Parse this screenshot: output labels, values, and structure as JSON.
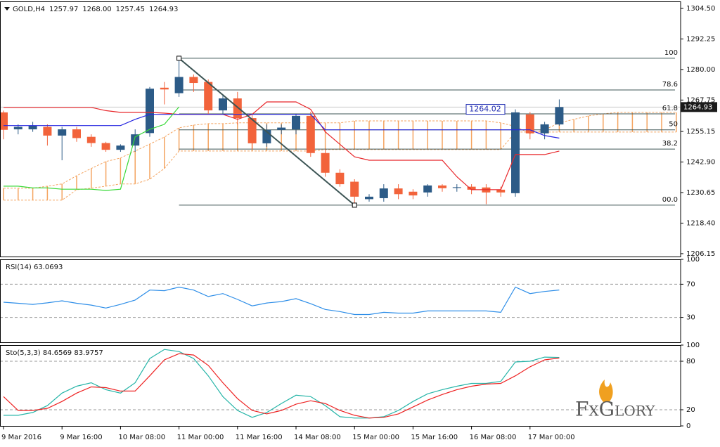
{
  "chart_data": [
    {
      "type": "candlestick",
      "title": "GOLD,H4",
      "ohlc_labels": [
        "1257.97",
        "1268.00",
        "1257.45",
        "1264.93"
      ],
      "categories": [
        "9 Mar 2016",
        null,
        null,
        null,
        "9 Mar 16:00",
        null,
        null,
        null,
        "10 Mar 08:00",
        null,
        null,
        null,
        "11 Mar 00:00",
        null,
        null,
        null,
        "11 Mar 16:00",
        null,
        null,
        null,
        "14 Mar 08:00",
        null,
        null,
        null,
        "15 Mar 00:00",
        null,
        null,
        null,
        "15 Mar 16:00",
        null,
        null,
        null,
        "16 Mar 08:00",
        null,
        null,
        null,
        "17 Mar 00:00",
        null,
        null,
        null,
        null,
        null,
        null,
        null,
        null,
        null,
        null
      ],
      "open": [
        1262.8,
        1256,
        1256,
        1257,
        1253.5,
        1256,
        1253,
        1250.5,
        1247.8,
        1249.5,
        1254.5,
        1272.7,
        1270.5,
        1277,
        1275,
        1263.6,
        1268.4,
        1260.5,
        1250.4,
        1255.8,
        1256,
        1261.4,
        1246.5,
        1238.6,
        1235,
        1228,
        1228.4,
        1232.3,
        1231,
        1230.7,
        1233.5,
        1232.5,
        1233,
        1232.7,
        1231.8,
        1230.4,
        1262,
        1254.4,
        1257.97,
        null,
        null,
        null,
        null,
        null,
        null,
        null,
        null
      ],
      "high": [
        1263.5,
        1258,
        1259,
        1258,
        1257,
        1257,
        1254,
        1251,
        1250,
        1256,
        1273,
        1275,
        1283.6,
        1278,
        1276,
        1270,
        1271,
        1262,
        1258,
        1258,
        1262,
        1263,
        1248,
        1240,
        1236,
        1230,
        1234,
        1234,
        1232,
        1234,
        1234,
        1234,
        1234,
        1234,
        1233,
        1264,
        1263,
        1259,
        1268,
        null,
        null,
        null,
        null,
        null,
        null,
        null,
        null
      ],
      "low": [
        1252,
        1254,
        1255,
        1249.5,
        1243.6,
        1251,
        1249,
        1247,
        1247,
        1247,
        1253,
        1266,
        1269,
        1271,
        1262,
        1262,
        1258,
        1248,
        1249,
        1254,
        1254,
        1245,
        1237,
        1233,
        1226,
        1227,
        1227,
        1228,
        1228,
        1229,
        1231,
        1231,
        1230,
        1226,
        1229,
        1229,
        1252,
        1252,
        1257.45,
        null,
        null,
        null,
        null,
        null,
        null,
        null,
        null
      ],
      "close": [
        1255.8,
        1257,
        1257.5,
        1253.5,
        1256,
        1252.5,
        1250.5,
        1247.8,
        1249.5,
        1254,
        1272.3,
        1272,
        1277,
        1274.6,
        1263.6,
        1268.4,
        1260.5,
        1250.4,
        1255.8,
        1256.7,
        1261.4,
        1246.5,
        1238.6,
        1234,
        1229,
        1229,
        1232.3,
        1230,
        1229.5,
        1233.5,
        1232.4,
        1232.8,
        1231.8,
        1230.7,
        1230.7,
        1262.8,
        1254.4,
        1258,
        1264.93,
        null,
        null,
        null,
        null,
        null,
        null,
        null,
        null
      ],
      "up_color": "#2c5b87",
      "down_color": "#f2633b",
      "series": [
        {
          "color": "#e8262a",
          "values": [
            1264.8,
            1264.8,
            1264.8,
            1264.8,
            1264.8,
            1264.8,
            1264.8,
            1263.5,
            1262.8,
            1262.8,
            1262.8,
            1262.5,
            1262,
            1262,
            1262,
            1262,
            1260,
            1262,
            1267,
            1267,
            1267,
            1264,
            1255,
            1250,
            1245,
            1243.6,
            1243.6,
            1243.6,
            1243.6,
            1243.6,
            1243.6,
            1237,
            1231.8,
            1231.8,
            1231.8,
            1245.9,
            1245.9,
            1245.9,
            1247.3,
            null,
            null,
            null,
            null,
            null,
            null,
            null,
            null
          ]
        },
        {
          "color": "#2626e0",
          "values": [
            1257.5,
            1257.5,
            1257.5,
            1257.5,
            1257.5,
            1257.5,
            1257.5,
            1257.5,
            1257.5,
            1260,
            1262,
            1262,
            1262,
            1262,
            1262,
            1262,
            1262,
            1262,
            1262,
            1262,
            1262,
            1262,
            1255.8,
            1255.8,
            1255.8,
            1255.8,
            1255.8,
            1255.8,
            1255.8,
            1255.8,
            1255.8,
            1255.8,
            1255.8,
            1255.8,
            1255.8,
            1255.8,
            1255.8,
            1253.5,
            1252.5,
            null,
            null,
            null,
            null,
            null,
            null,
            null,
            null
          ]
        },
        {
          "color": "#36d936",
          "values": [
            1233.2,
            1233.2,
            1232.5,
            1232.5,
            1232,
            1232,
            1232,
            1231.5,
            1232,
            1253,
            1256,
            1258,
            1265,
            null,
            null,
            null,
            null,
            null,
            null,
            null,
            null,
            null,
            null,
            null,
            null,
            null,
            null,
            null,
            null,
            null,
            null,
            null,
            null,
            null,
            null,
            null,
            null,
            null,
            null,
            null,
            null,
            null,
            null,
            null,
            null,
            null,
            null
          ]
        }
      ],
      "cloud": {
        "color": "#f4a460",
        "a": [
          1232.4,
          1232.4,
          1232.4,
          1233.2,
          1234.1,
          1237.4,
          1240.3,
          1243.1,
          1244.5,
          1247.3,
          1250.1,
          1252.9,
          1256.6,
          1257.7,
          1258.3,
          1258.3,
          1258.6,
          1258.6,
          1258.6,
          1258.6,
          1258.6,
          1258.6,
          1258.6,
          1258.6,
          1259.4,
          1259.4,
          1259.4,
          1259.4,
          1259.4,
          1259.4,
          1259.4,
          1259.4,
          1259.4,
          1259.4,
          1258.6,
          1257.2,
          1254.3,
          1255.8,
          1258.6,
          1260,
          1261.4,
          1262.2,
          1262.8,
          1262.8,
          1262.8,
          1262.8,
          1262.8
        ],
        "b": [
          1227.6,
          1227.6,
          1227.6,
          1227.6,
          1227.6,
          1231.8,
          1232.4,
          1233.2,
          1234.1,
          1234.1,
          1236,
          1240.3,
          1247.3,
          1247.3,
          1247.3,
          1247.3,
          1247.3,
          1247.3,
          1247.3,
          1247.3,
          1247.3,
          1247.3,
          1247.9,
          1247.9,
          1247.9,
          1247.9,
          1247.9,
          1247.9,
          1247.9,
          1247.9,
          1247.9,
          1247.9,
          1247.9,
          1247.9,
          1247.9,
          1254.9,
          1254.9,
          1254.9,
          1254.9,
          1254.9,
          1254.9,
          1254.9,
          1254.9,
          1254.9,
          1254.9,
          1254.9,
          1254.9
        ]
      },
      "trendline": {
        "color": "#3d5555",
        "x": [
          12,
          24
        ],
        "y": [
          1284.5,
          1225.6
        ]
      },
      "fibonacci": {
        "color": "#3d5555",
        "levels": [
          {
            "label": "100",
            "value": 1284.5
          },
          {
            "label": "78.6",
            "value": 1271.8
          },
          {
            "label": "61.8",
            "value": 1262.2
          },
          {
            "label": "50",
            "value": 1255.8
          },
          {
            "label": "38.2",
            "value": 1248.1
          },
          {
            "label": "00.0",
            "value": 1225.6
          }
        ]
      },
      "marker": {
        "value": 1264.02,
        "label": "1264.02",
        "color": "#1f2bb0"
      },
      "last_price": {
        "value": 1264.93,
        "label": "1264.93"
      },
      "ylim": [
        1205,
        1307.3
      ],
      "yticks": [
        {
          "value": 1304.5,
          "label": "1304.50"
        },
        1292.25,
        {
          "value": 1280,
          "label": "1280.00"
        },
        1267.75,
        1255.15,
        {
          "value": 1242.9,
          "label": "1242.90"
        },
        1230.65,
        {
          "value": 1218.4,
          "label": "1218.40"
        },
        1206.15
      ]
    },
    {
      "type": "line",
      "title": "RSI(14) 63.0693",
      "series": [
        {
          "color": "#2e8ee8",
          "values": [
            48.3,
            47,
            45.7,
            47.5,
            50,
            47,
            44.8,
            41.3,
            45.7,
            50.9,
            63,
            62.2,
            66.5,
            63,
            55.2,
            58.7,
            51.7,
            43.9,
            47.4,
            49.1,
            52.6,
            46.5,
            39.6,
            37,
            33.5,
            33.5,
            36.1,
            35.2,
            35.2,
            37.8,
            37.8,
            37.8,
            37.8,
            37.8,
            36.1,
            66.5,
            58.7,
            61.3,
            63.07
          ]
        }
      ],
      "levels": [
        70,
        30
      ],
      "ylim": [
        0,
        100
      ],
      "yticks": [
        100,
        70,
        30
      ]
    },
    {
      "type": "line",
      "title": "Sto(5,3,3) 84.6569 83.9757",
      "series": [
        {
          "color": "#26b5a8",
          "values": [
            13.1,
            13.1,
            16.6,
            25.1,
            40.6,
            49.1,
            53.4,
            44.9,
            40.6,
            53.4,
            83.4,
            94.6,
            92,
            83.4,
            62,
            36.3,
            19.1,
            10.6,
            16.6,
            27.7,
            38,
            36.3,
            25.1,
            11.4,
            9.7,
            9.7,
            11.4,
            19.1,
            30.3,
            39.7,
            44.9,
            49.1,
            52.6,
            52.6,
            55.1,
            79.1,
            80,
            85.1,
            84.66
          ]
        },
        {
          "color": "#ee2222",
          "values": [
            36.3,
            19.1,
            19.1,
            21.7,
            30.3,
            40.6,
            48.3,
            47.4,
            43.1,
            43.1,
            62,
            81.7,
            89.4,
            87.7,
            74.9,
            53.4,
            33.7,
            19.1,
            14.9,
            19.1,
            26.9,
            31.1,
            27.7,
            19.1,
            13.1,
            9.7,
            10.6,
            14.9,
            23.4,
            32,
            38.9,
            44.9,
            49.1,
            51.7,
            52.6,
            62,
            73.1,
            81.7,
            83.98
          ]
        }
      ],
      "levels": [
        80,
        20
      ],
      "ylim": [
        0,
        100
      ],
      "yticks": [
        100,
        80,
        20,
        0
      ],
      "logo": "FxGlory"
    }
  ]
}
